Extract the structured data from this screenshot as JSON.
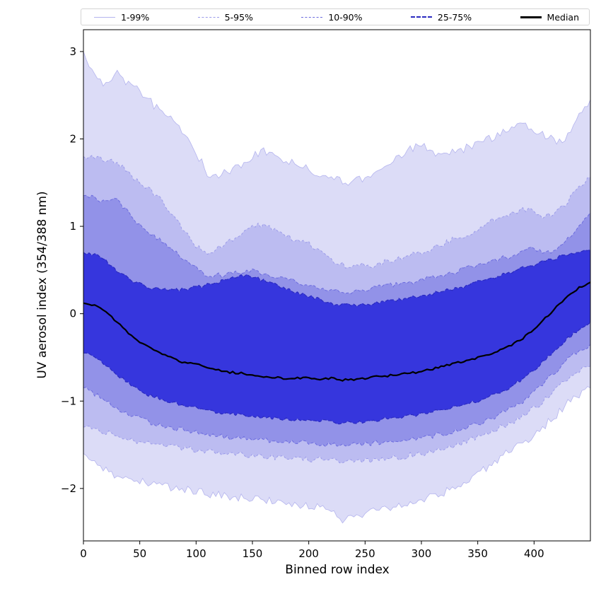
{
  "figure": {
    "background": "#ffffff"
  },
  "legend": {
    "items": [
      {
        "label": "1-99%",
        "color": "#b4b4ee",
        "style": "solid",
        "width": 1
      },
      {
        "label": "5-95%",
        "color": "#9a9ae9",
        "style": "dashed",
        "width": 1
      },
      {
        "label": "10-90%",
        "color": "#6c6cde",
        "style": "dashed",
        "width": 1
      },
      {
        "label": "25-75%",
        "color": "#2a2ac0",
        "style": "dashed",
        "width": 2
      },
      {
        "label": "Median",
        "color": "#000000",
        "style": "solid",
        "width": 3
      }
    ]
  },
  "chart_data": {
    "type": "area",
    "title": "",
    "xlabel": "Binned row index",
    "ylabel": "UV aerosol index (354/388 nm)",
    "xlim": [
      0,
      450
    ],
    "ylim": [
      -2.6,
      3.25
    ],
    "grid": false,
    "legend_position": "top",
    "x_ticks": [
      0,
      50,
      100,
      150,
      200,
      250,
      300,
      350,
      400
    ],
    "y_ticks": [
      -2,
      -1,
      0,
      1,
      2,
      3
    ],
    "y_tick_labels": [
      "−2",
      "−1",
      "0",
      "1",
      "2",
      "3"
    ],
    "median_color": "#000000",
    "x": [
      0,
      10,
      20,
      30,
      40,
      50,
      60,
      70,
      80,
      90,
      100,
      110,
      120,
      130,
      140,
      150,
      160,
      170,
      180,
      190,
      200,
      210,
      220,
      230,
      240,
      250,
      260,
      270,
      280,
      290,
      300,
      310,
      320,
      330,
      340,
      350,
      360,
      370,
      380,
      390,
      400,
      410,
      420,
      430,
      440,
      450
    ],
    "series": {
      "p01": [
        -1.6,
        -1.7,
        -1.78,
        -1.85,
        -1.9,
        -1.92,
        -1.95,
        -1.98,
        -2.0,
        -2.02,
        -2.02,
        -2.05,
        -2.08,
        -2.1,
        -2.1,
        -2.12,
        -2.15,
        -2.15,
        -2.18,
        -2.18,
        -2.2,
        -2.22,
        -2.25,
        -2.35,
        -2.3,
        -2.28,
        -2.25,
        -2.22,
        -2.2,
        -2.15,
        -2.12,
        -2.1,
        -2.05,
        -1.98,
        -1.9,
        -1.82,
        -1.75,
        -1.65,
        -1.56,
        -1.48,
        -1.4,
        -1.28,
        -1.15,
        -1.02,
        -0.92,
        -0.85
      ],
      "p05": [
        -1.3,
        -1.33,
        -1.36,
        -1.4,
        -1.43,
        -1.46,
        -1.48,
        -1.5,
        -1.52,
        -1.54,
        -1.56,
        -1.58,
        -1.59,
        -1.6,
        -1.61,
        -1.62,
        -1.63,
        -1.64,
        -1.65,
        -1.66,
        -1.66,
        -1.67,
        -1.68,
        -1.7,
        -1.69,
        -1.68,
        -1.67,
        -1.66,
        -1.64,
        -1.62,
        -1.6,
        -1.57,
        -1.54,
        -1.5,
        -1.46,
        -1.42,
        -1.36,
        -1.3,
        -1.24,
        -1.16,
        -1.08,
        -0.98,
        -0.86,
        -0.75,
        -0.66,
        -0.6
      ],
      "p10": [
        -0.85,
        -0.92,
        -1.0,
        -1.08,
        -1.15,
        -1.2,
        -1.25,
        -1.28,
        -1.31,
        -1.33,
        -1.35,
        -1.38,
        -1.4,
        -1.42,
        -1.43,
        -1.44,
        -1.45,
        -1.46,
        -1.47,
        -1.47,
        -1.48,
        -1.49,
        -1.5,
        -1.51,
        -1.5,
        -1.49,
        -1.48,
        -1.47,
        -1.46,
        -1.44,
        -1.42,
        -1.4,
        -1.37,
        -1.34,
        -1.3,
        -1.26,
        -1.21,
        -1.15,
        -1.08,
        -1.0,
        -0.9,
        -0.78,
        -0.65,
        -0.52,
        -0.42,
        -0.35
      ],
      "p25": [
        -0.45,
        -0.5,
        -0.6,
        -0.7,
        -0.8,
        -0.88,
        -0.94,
        -0.98,
        -1.02,
        -1.05,
        -1.07,
        -1.1,
        -1.13,
        -1.15,
        -1.16,
        -1.17,
        -1.19,
        -1.2,
        -1.21,
        -1.22,
        -1.22,
        -1.23,
        -1.24,
        -1.25,
        -1.24,
        -1.23,
        -1.22,
        -1.2,
        -1.19,
        -1.17,
        -1.15,
        -1.12,
        -1.1,
        -1.07,
        -1.03,
        -1.0,
        -0.95,
        -0.9,
        -0.83,
        -0.75,
        -0.65,
        -0.52,
        -0.4,
        -0.28,
        -0.18,
        -0.1
      ],
      "p50": [
        0.12,
        0.1,
        0.02,
        -0.1,
        -0.22,
        -0.32,
        -0.4,
        -0.46,
        -0.52,
        -0.56,
        -0.58,
        -0.62,
        -0.65,
        -0.67,
        -0.68,
        -0.7,
        -0.72,
        -0.73,
        -0.74,
        -0.73,
        -0.74,
        -0.75,
        -0.74,
        -0.76,
        -0.75,
        -0.74,
        -0.72,
        -0.71,
        -0.7,
        -0.68,
        -0.66,
        -0.63,
        -0.6,
        -0.57,
        -0.54,
        -0.5,
        -0.46,
        -0.42,
        -0.36,
        -0.28,
        -0.18,
        -0.05,
        0.08,
        0.2,
        0.3,
        0.36
      ],
      "p75": [
        0.7,
        0.68,
        0.6,
        0.48,
        0.4,
        0.34,
        0.3,
        0.28,
        0.27,
        0.28,
        0.3,
        0.33,
        0.36,
        0.4,
        0.44,
        0.42,
        0.38,
        0.33,
        0.28,
        0.24,
        0.2,
        0.16,
        0.12,
        0.1,
        0.1,
        0.11,
        0.12,
        0.14,
        0.16,
        0.18,
        0.2,
        0.23,
        0.26,
        0.29,
        0.32,
        0.36,
        0.4,
        0.44,
        0.48,
        0.52,
        0.56,
        0.6,
        0.64,
        0.68,
        0.71,
        0.73
      ],
      "p90": [
        1.35,
        1.32,
        1.28,
        1.3,
        1.15,
        1.02,
        0.92,
        0.82,
        0.72,
        0.62,
        0.55,
        0.42,
        0.44,
        0.46,
        0.48,
        0.5,
        0.46,
        0.42,
        0.4,
        0.36,
        0.32,
        0.28,
        0.26,
        0.24,
        0.26,
        0.28,
        0.3,
        0.32,
        0.34,
        0.36,
        0.38,
        0.42,
        0.45,
        0.48,
        0.52,
        0.55,
        0.6,
        0.63,
        0.66,
        0.72,
        0.75,
        0.7,
        0.72,
        0.85,
        1.02,
        1.16
      ],
      "p95": [
        1.8,
        1.78,
        1.76,
        1.74,
        1.62,
        1.5,
        1.4,
        1.28,
        1.12,
        0.95,
        0.78,
        0.7,
        0.75,
        0.82,
        0.92,
        1.0,
        1.02,
        0.95,
        0.88,
        0.84,
        0.8,
        0.7,
        0.62,
        0.56,
        0.54,
        0.55,
        0.56,
        0.6,
        0.63,
        0.66,
        0.7,
        0.74,
        0.8,
        0.86,
        0.9,
        0.98,
        1.05,
        1.1,
        1.16,
        1.2,
        1.16,
        1.1,
        1.18,
        1.28,
        1.45,
        1.56
      ],
      "p99": [
        3.0,
        2.72,
        2.62,
        2.76,
        2.62,
        2.55,
        2.42,
        2.3,
        2.2,
        2.05,
        1.85,
        1.62,
        1.57,
        1.63,
        1.7,
        1.8,
        1.85,
        1.78,
        1.74,
        1.7,
        1.65,
        1.6,
        1.55,
        1.5,
        1.52,
        1.56,
        1.6,
        1.68,
        1.8,
        1.88,
        1.92,
        1.85,
        1.8,
        1.85,
        1.9,
        1.95,
        2.0,
        2.05,
        2.1,
        2.15,
        2.1,
        2.04,
        1.95,
        2.05,
        2.25,
        2.45
      ]
    },
    "bands": [
      {
        "label": "1-99",
        "lower": "p01",
        "upper": "p99",
        "fill": "#dcdcf7",
        "edge": "#b4b4ee",
        "edge_width": 0.8,
        "dash": "",
        "noise": 0.05
      },
      {
        "label": "5-95",
        "lower": "p05",
        "upper": "p95",
        "fill": "#bcbcf1",
        "edge": "#9a9ae9",
        "edge_width": 1.0,
        "dash": "3 3",
        "noise": 0.035
      },
      {
        "label": "10-90",
        "lower": "p10",
        "upper": "p90",
        "fill": "#9292e8",
        "edge": "#6c6cde",
        "edge_width": 1.0,
        "dash": "4 2.5",
        "noise": 0.028
      },
      {
        "label": "25-75",
        "lower": "p25",
        "upper": "p75",
        "fill": "#3636dd",
        "edge": "#2a2ac0",
        "edge_width": 1.2,
        "dash": "5 2.5",
        "noise": 0.02
      }
    ]
  }
}
